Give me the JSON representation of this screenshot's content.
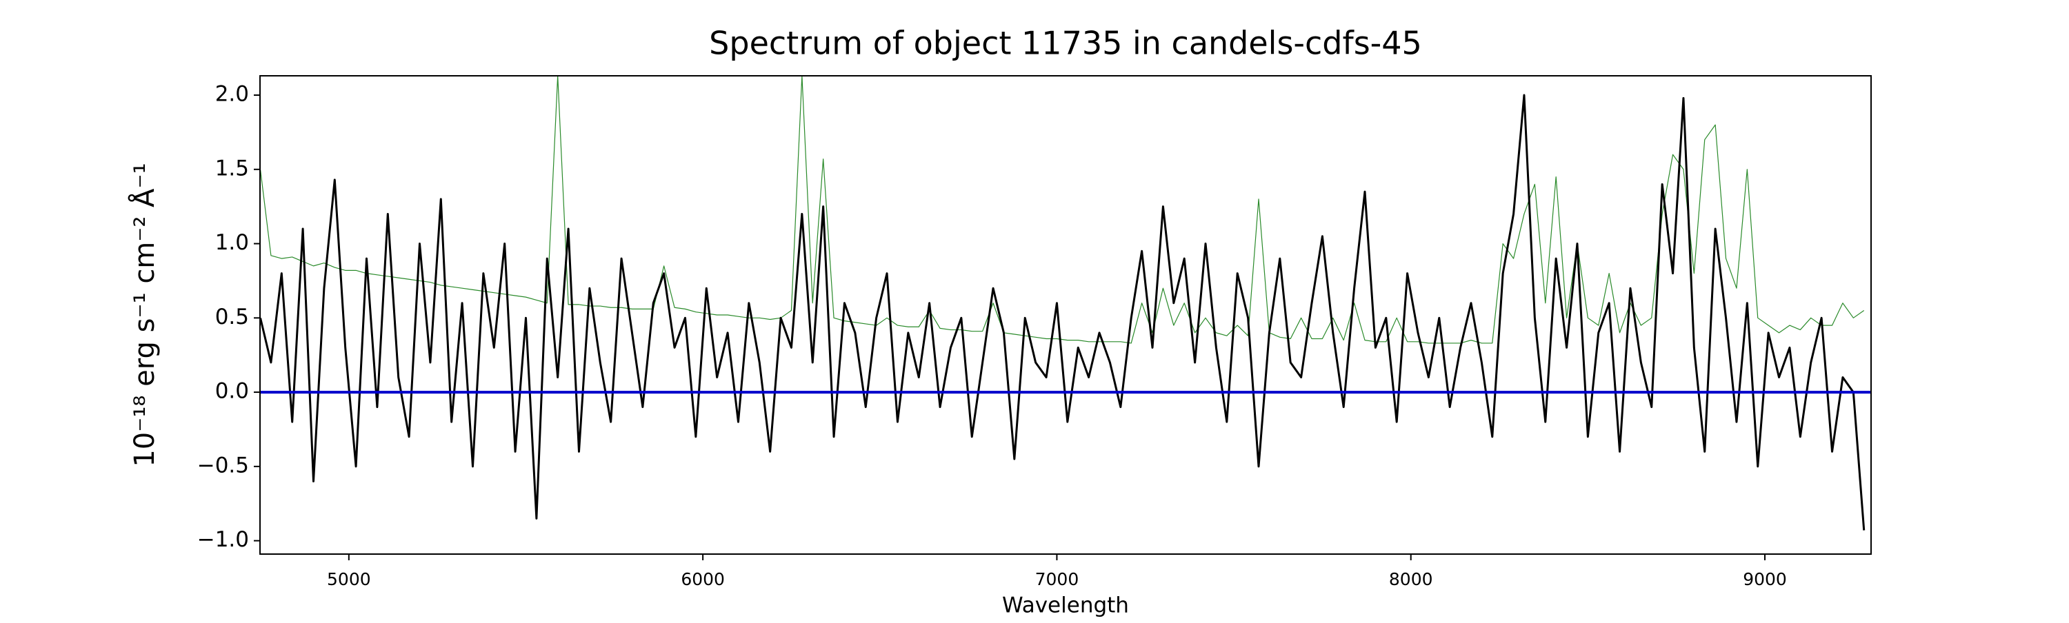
{
  "chart_data": {
    "type": "line",
    "title": "Spectrum of object 11735 in candels-cdfs-45",
    "xlabel": "Wavelength",
    "ylabel": "10⁻¹⁸ erg s⁻¹ cm⁻² Å⁻¹",
    "x": [
      4750,
      4780,
      4810,
      4840,
      4870,
      4900,
      4930,
      4960,
      4990,
      5020,
      5050,
      5080,
      5110,
      5140,
      5170,
      5200,
      5230,
      5260,
      5290,
      5320,
      5350,
      5380,
      5410,
      5440,
      5470,
      5500,
      5530,
      5560,
      5590,
      5620,
      5650,
      5680,
      5710,
      5740,
      5770,
      5800,
      5830,
      5860,
      5890,
      5920,
      5950,
      5980,
      6010,
      6040,
      6070,
      6100,
      6130,
      6160,
      6190,
      6220,
      6250,
      6280,
      6310,
      6340,
      6370,
      6400,
      6430,
      6460,
      6490,
      6520,
      6550,
      6580,
      6610,
      6640,
      6670,
      6700,
      6730,
      6760,
      6790,
      6820,
      6850,
      6880,
      6910,
      6940,
      6970,
      7000,
      7030,
      7060,
      7090,
      7120,
      7150,
      7180,
      7210,
      7240,
      7270,
      7300,
      7330,
      7360,
      7390,
      7420,
      7450,
      7480,
      7510,
      7540,
      7570,
      7600,
      7630,
      7660,
      7690,
      7720,
      7750,
      7780,
      7810,
      7840,
      7870,
      7900,
      7930,
      7960,
      7990,
      8020,
      8050,
      8080,
      8110,
      8140,
      8170,
      8200,
      8230,
      8260,
      8290,
      8320,
      8350,
      8380,
      8410,
      8440,
      8470,
      8500,
      8530,
      8560,
      8590,
      8620,
      8650,
      8680,
      8710,
      8740,
      8770,
      8800,
      8830,
      8860,
      8890,
      8920,
      8950,
      8980,
      9010,
      9040,
      9070,
      9100,
      9130,
      9160,
      9190,
      9220,
      9250,
      9280
    ],
    "series": [
      {
        "color": "#2a8a2a",
        "values": [
          1.5,
          0.92,
          0.9,
          0.91,
          0.88,
          0.85,
          0.87,
          0.84,
          0.82,
          0.82,
          0.8,
          0.79,
          0.78,
          0.77,
          0.76,
          0.75,
          0.74,
          0.72,
          0.71,
          0.7,
          0.69,
          0.68,
          0.67,
          0.66,
          0.65,
          0.64,
          0.62,
          0.6,
          2.13,
          0.59,
          0.59,
          0.58,
          0.58,
          0.57,
          0.57,
          0.56,
          0.56,
          0.56,
          0.85,
          0.57,
          0.56,
          0.54,
          0.53,
          0.52,
          0.52,
          0.51,
          0.5,
          0.5,
          0.49,
          0.5,
          0.55,
          2.13,
          0.6,
          1.57,
          0.5,
          0.48,
          0.47,
          0.46,
          0.45,
          0.5,
          0.45,
          0.44,
          0.44,
          0.55,
          0.43,
          0.42,
          0.42,
          0.41,
          0.41,
          0.6,
          0.4,
          0.39,
          0.38,
          0.37,
          0.36,
          0.36,
          0.35,
          0.35,
          0.34,
          0.34,
          0.34,
          0.34,
          0.33,
          0.6,
          0.4,
          0.7,
          0.45,
          0.6,
          0.4,
          0.5,
          0.4,
          0.38,
          0.45,
          0.38,
          1.3,
          0.4,
          0.37,
          0.36,
          0.5,
          0.36,
          0.36,
          0.5,
          0.35,
          0.6,
          0.35,
          0.34,
          0.34,
          0.5,
          0.34,
          0.34,
          0.33,
          0.33,
          0.33,
          0.33,
          0.35,
          0.33,
          0.33,
          1.0,
          0.9,
          1.2,
          1.4,
          0.6,
          1.45,
          0.5,
          1.0,
          0.5,
          0.45,
          0.8,
          0.4,
          0.6,
          0.45,
          0.5,
          1.2,
          1.6,
          1.5,
          0.8,
          1.7,
          1.8,
          0.9,
          0.7,
          1.5,
          0.5,
          0.45,
          0.4,
          0.45,
          0.42,
          0.5,
          0.45,
          0.45,
          0.6,
          0.5,
          0.55
        ],
        "width": 1.2
      },
      {
        "color": "#000000",
        "values": [
          0.5,
          0.2,
          0.8,
          -0.2,
          1.1,
          -0.6,
          0.7,
          1.43,
          0.3,
          -0.5,
          0.9,
          -0.1,
          1.2,
          0.1,
          -0.3,
          1.0,
          0.2,
          1.3,
          -0.2,
          0.6,
          -0.5,
          0.8,
          0.3,
          1.0,
          -0.4,
          0.5,
          -0.85,
          0.9,
          0.1,
          1.1,
          -0.4,
          0.7,
          0.2,
          -0.2,
          0.9,
          0.4,
          -0.1,
          0.6,
          0.8,
          0.3,
          0.5,
          -0.3,
          0.7,
          0.1,
          0.4,
          -0.2,
          0.6,
          0.2,
          -0.4,
          0.5,
          0.3,
          1.2,
          0.2,
          1.25,
          -0.3,
          0.6,
          0.4,
          -0.1,
          0.5,
          0.8,
          -0.2,
          0.4,
          0.1,
          0.6,
          -0.1,
          0.3,
          0.5,
          -0.3,
          0.2,
          0.7,
          0.4,
          -0.45,
          0.5,
          0.2,
          0.1,
          0.6,
          -0.2,
          0.3,
          0.1,
          0.4,
          0.2,
          -0.1,
          0.5,
          0.95,
          0.3,
          1.25,
          0.6,
          0.9,
          0.2,
          1.0,
          0.3,
          -0.2,
          0.8,
          0.5,
          -0.5,
          0.4,
          0.9,
          0.2,
          0.1,
          0.6,
          1.05,
          0.4,
          -0.1,
          0.7,
          1.35,
          0.3,
          0.5,
          -0.2,
          0.8,
          0.4,
          0.1,
          0.5,
          -0.1,
          0.3,
          0.6,
          0.2,
          -0.3,
          0.8,
          1.2,
          2.0,
          0.5,
          -0.2,
          0.9,
          0.3,
          1.0,
          -0.3,
          0.4,
          0.6,
          -0.4,
          0.7,
          0.2,
          -0.1,
          1.4,
          0.8,
          1.98,
          0.3,
          -0.4,
          1.1,
          0.5,
          -0.2,
          0.6,
          -0.5,
          0.4,
          0.1,
          0.3,
          -0.3,
          0.2,
          0.5,
          -0.4,
          0.1,
          0.0,
          -0.93
        ],
        "width": 3
      }
    ],
    "hlines": [
      {
        "value": 0,
        "color": "#0000cc"
      }
    ],
    "xlim": [
      4749,
      9300
    ],
    "xticks": [
      5000,
      6000,
      7000,
      8000,
      9000
    ],
    "ylim": [
      -1.09,
      2.13
    ],
    "yticks": [
      {
        "value": -1.0,
        "label": "−1.0"
      },
      {
        "value": -0.5,
        "label": "−0.5"
      },
      {
        "value": 0.0,
        "label": "0.0"
      },
      {
        "value": 0.5,
        "label": "0.5"
      },
      {
        "value": 1.0,
        "label": "1.0"
      },
      {
        "value": 1.5,
        "label": "1.5"
      },
      {
        "value": 2.0,
        "label": "2.0"
      }
    ]
  }
}
